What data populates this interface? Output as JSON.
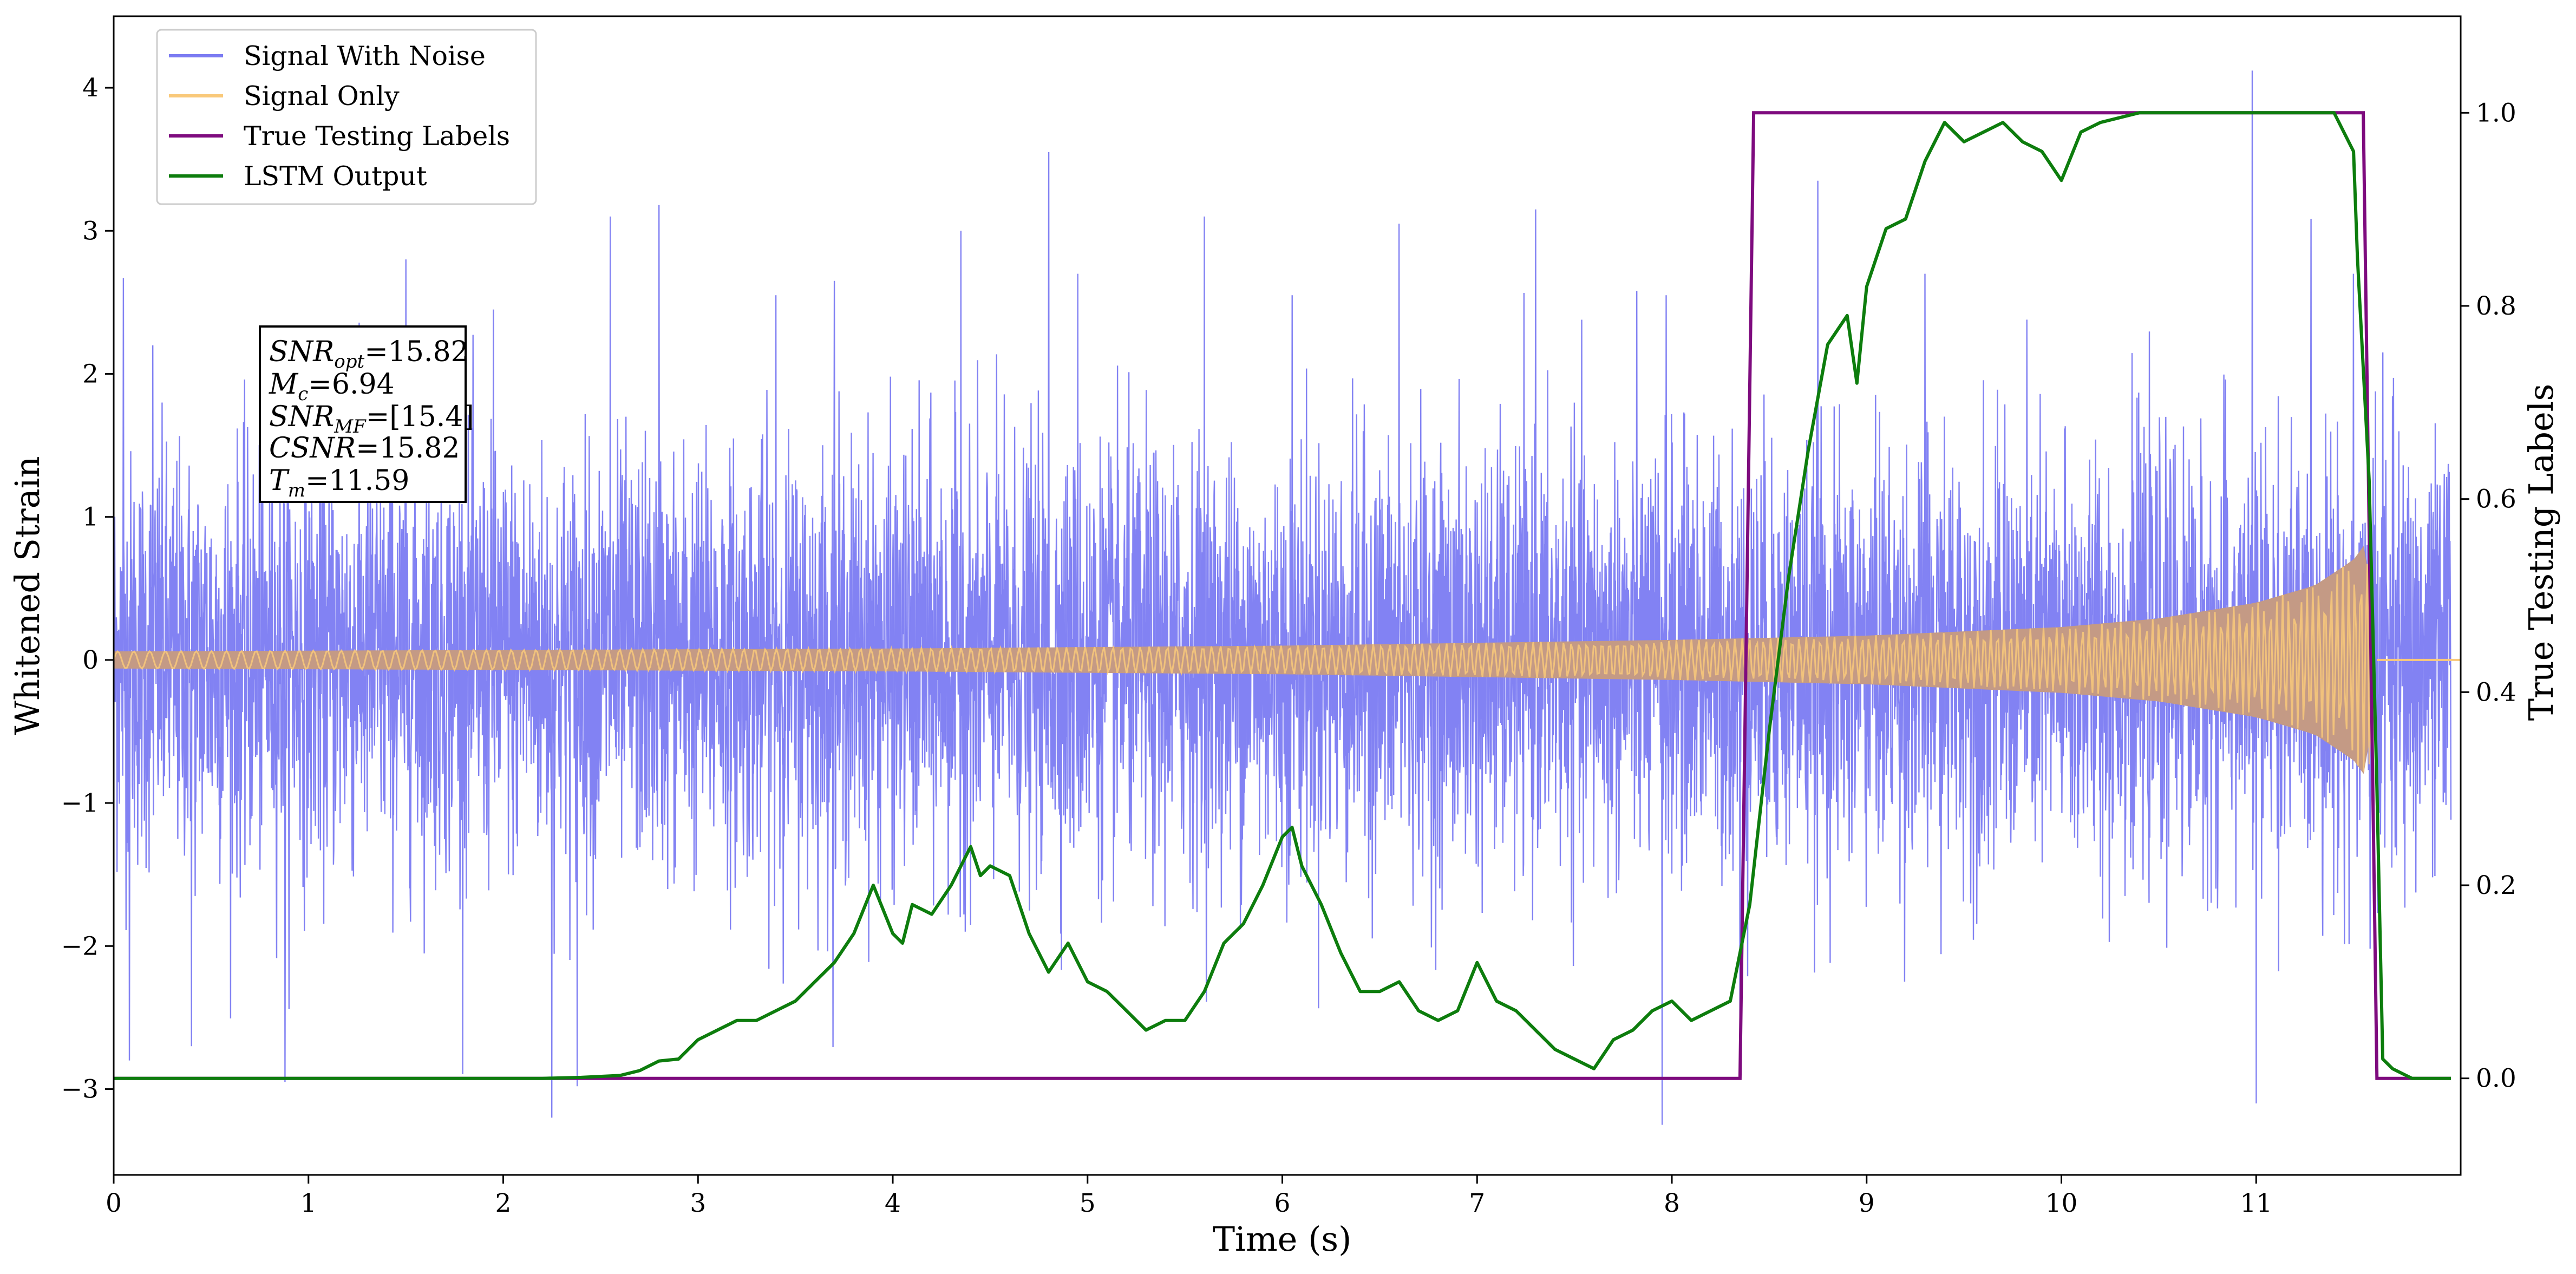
{
  "chart_data": {
    "type": "line",
    "title": "",
    "xlabel": "Time (s)",
    "ylabel": "Whitened Strain",
    "y2label": "True Testing Labels",
    "xlim": [
      0,
      12.05
    ],
    "ylim": [
      -3.6,
      4.5
    ],
    "y2lim": [
      -0.1,
      1.1
    ],
    "x_ticks": [
      0,
      1,
      2,
      3,
      4,
      5,
      6,
      7,
      8,
      9,
      10,
      11
    ],
    "y_ticks": [
      -3,
      -2,
      -1,
      0,
      1,
      2,
      3,
      4
    ],
    "y_tick_labels": [
      "−3",
      "−2",
      "−1",
      "0",
      "1",
      "2",
      "3",
      "4"
    ],
    "y2_ticks": [
      0.0,
      0.2,
      0.4,
      0.6,
      0.8,
      1.0
    ],
    "y2_tick_labels": [
      "0.0",
      "0.2",
      "0.4",
      "0.6",
      "0.8",
      "1.0"
    ],
    "grid": false,
    "legend_position": "top-left",
    "series": [
      {
        "name": "Signal With Noise",
        "axis": "left",
        "color": "#7b7bf2",
        "description_stats": {
          "std": 0.72,
          "max": 4.1,
          "min": -3.2
        },
        "spikes": [
          [
            0.05,
            2.67
          ],
          [
            0.08,
            -2.8
          ],
          [
            0.2,
            2.2
          ],
          [
            0.4,
            -2.7
          ],
          [
            0.88,
            2.75
          ],
          [
            0.88,
            -2.95
          ],
          [
            1.5,
            2.8
          ],
          [
            1.95,
            2.45
          ],
          [
            2.25,
            -3.2
          ],
          [
            2.38,
            3.03
          ],
          [
            2.38,
            -2.98
          ],
          [
            2.55,
            3.1
          ],
          [
            2.8,
            3.18
          ],
          [
            3.4,
            2.55
          ],
          [
            3.7,
            2.65
          ],
          [
            4.35,
            3.0
          ],
          [
            4.8,
            3.55
          ],
          [
            4.95,
            2.7
          ],
          [
            5.6,
            3.1
          ],
          [
            6.05,
            2.55
          ],
          [
            6.6,
            3.05
          ],
          [
            7.3,
            3.15
          ],
          [
            7.95,
            -3.25
          ],
          [
            7.97,
            2.55
          ],
          [
            8.35,
            -2.65
          ],
          [
            8.75,
            3.35
          ],
          [
            9.3,
            2.7
          ],
          [
            10.98,
            4.12
          ],
          [
            11.0,
            -3.1
          ],
          [
            11.5,
            2.7
          ],
          [
            11.65,
            2.15
          ]
        ]
      },
      {
        "name": "Signal Only",
        "axis": "left",
        "color": "#f9c97a",
        "envelope": [
          [
            0.0,
            0.06
          ],
          [
            2.0,
            0.07
          ],
          [
            4.0,
            0.08
          ],
          [
            6.0,
            0.1
          ],
          [
            8.0,
            0.14
          ],
          [
            9.0,
            0.17
          ],
          [
            10.0,
            0.23
          ],
          [
            10.5,
            0.29
          ],
          [
            11.0,
            0.4
          ],
          [
            11.3,
            0.52
          ],
          [
            11.5,
            0.7
          ],
          [
            11.58,
            0.85
          ],
          [
            11.62,
            0.0
          ],
          [
            12.05,
            0.0
          ]
        ]
      },
      {
        "name": "True Testing  Labels",
        "axis": "right",
        "color": "#7e0b7e",
        "x": [
          0,
          8.35,
          8.42,
          11.55,
          11.62,
          12.0
        ],
        "y": [
          0,
          0,
          1,
          1,
          0,
          0
        ]
      },
      {
        "name": "LSTM Output",
        "axis": "right",
        "color": "#0d7d0d",
        "x": [
          0.0,
          0.5,
          1.0,
          1.5,
          2.0,
          2.2,
          2.4,
          2.6,
          2.7,
          2.8,
          2.9,
          3.0,
          3.1,
          3.2,
          3.3,
          3.4,
          3.5,
          3.6,
          3.7,
          3.8,
          3.9,
          4.0,
          4.05,
          4.1,
          4.2,
          4.3,
          4.4,
          4.45,
          4.5,
          4.6,
          4.7,
          4.8,
          4.9,
          5.0,
          5.1,
          5.2,
          5.3,
          5.4,
          5.5,
          5.6,
          5.7,
          5.8,
          5.9,
          6.0,
          6.05,
          6.1,
          6.2,
          6.3,
          6.4,
          6.5,
          6.6,
          6.7,
          6.8,
          6.9,
          7.0,
          7.1,
          7.2,
          7.3,
          7.4,
          7.5,
          7.6,
          7.7,
          7.8,
          7.9,
          8.0,
          8.1,
          8.2,
          8.3,
          8.4,
          8.5,
          8.6,
          8.7,
          8.8,
          8.9,
          8.95,
          9.0,
          9.1,
          9.2,
          9.3,
          9.4,
          9.5,
          9.6,
          9.7,
          9.8,
          9.9,
          10.0,
          10.1,
          10.2,
          10.4,
          10.6,
          11.0,
          11.3,
          11.4,
          11.5,
          11.52,
          11.58,
          11.62,
          11.65,
          11.7,
          11.8,
          12.0
        ],
        "y": [
          0.0,
          0.0,
          0.0,
          0.0,
          0.0,
          0.0,
          0.001,
          0.003,
          0.008,
          0.018,
          0.02,
          0.04,
          0.05,
          0.06,
          0.06,
          0.07,
          0.08,
          0.1,
          0.12,
          0.15,
          0.2,
          0.15,
          0.14,
          0.18,
          0.17,
          0.2,
          0.24,
          0.21,
          0.22,
          0.21,
          0.15,
          0.11,
          0.14,
          0.1,
          0.09,
          0.07,
          0.05,
          0.06,
          0.06,
          0.09,
          0.14,
          0.16,
          0.2,
          0.25,
          0.26,
          0.22,
          0.18,
          0.13,
          0.09,
          0.09,
          0.1,
          0.07,
          0.06,
          0.07,
          0.12,
          0.08,
          0.07,
          0.05,
          0.03,
          0.02,
          0.01,
          0.04,
          0.05,
          0.07,
          0.08,
          0.06,
          0.07,
          0.08,
          0.18,
          0.36,
          0.52,
          0.65,
          0.76,
          0.79,
          0.72,
          0.82,
          0.88,
          0.89,
          0.95,
          0.99,
          0.97,
          0.98,
          0.99,
          0.97,
          0.96,
          0.93,
          0.98,
          0.99,
          1.0,
          1.0,
          1.0,
          1.0,
          1.0,
          0.96,
          0.85,
          0.62,
          0.3,
          0.02,
          0.01,
          0.0,
          0.0
        ]
      }
    ],
    "annotation_lines": [
      "SNR_opt=15.82",
      "M_c=6.94",
      "SNR_MF=[15.4]",
      "CSNR=15.82",
      "T_m=11.59"
    ]
  }
}
